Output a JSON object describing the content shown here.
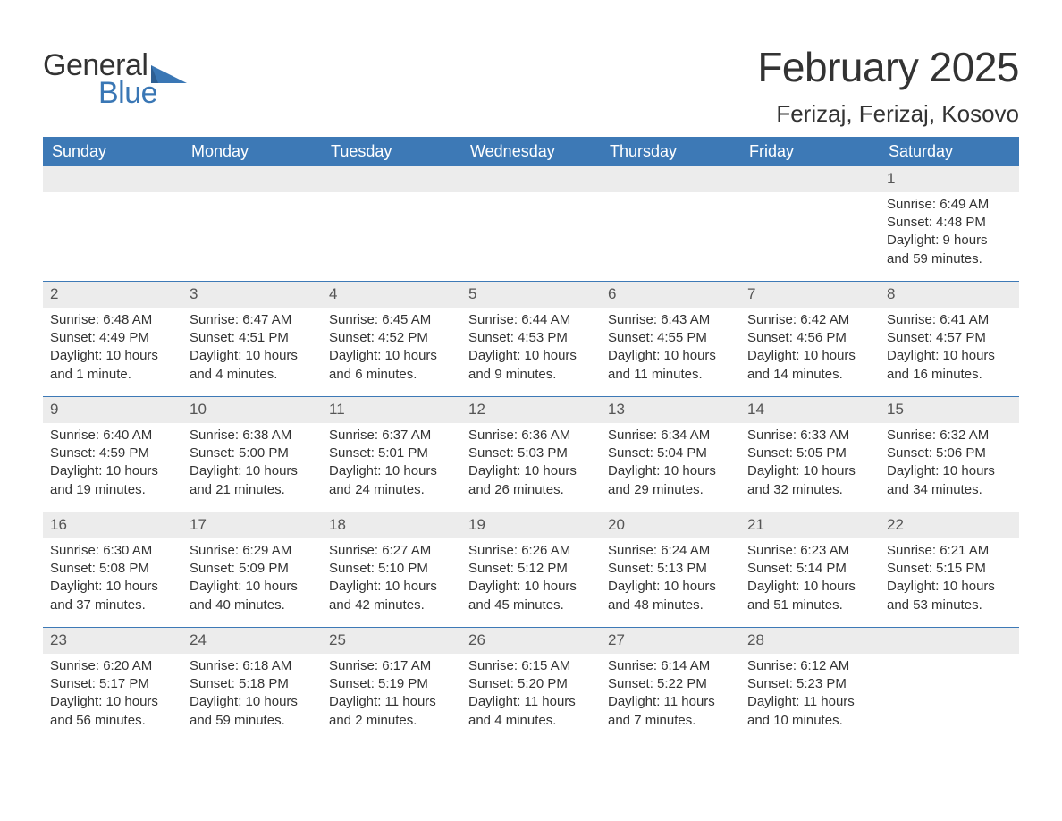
{
  "brand": {
    "text_general": "General",
    "text_blue": "Blue",
    "color_dark": "#333333",
    "color_accent": "#3a77b5"
  },
  "header": {
    "month_title": "February 2025",
    "location": "Ferizaj, Ferizaj, Kosovo"
  },
  "colors": {
    "header_bg": "#3d79b6",
    "header_text": "#ffffff",
    "daynum_bg": "#ececec",
    "daynum_text": "#555555",
    "body_text": "#333333",
    "row_border": "#3d79b6",
    "page_bg": "#ffffff"
  },
  "typography": {
    "month_title_fontsize": 46,
    "location_fontsize": 26,
    "dow_fontsize": 18,
    "daynum_fontsize": 17,
    "body_fontsize": 15,
    "font_family": "Arial"
  },
  "layout": {
    "columns": 7,
    "cell_min_height": 128
  },
  "days_of_week": [
    "Sunday",
    "Monday",
    "Tuesday",
    "Wednesday",
    "Thursday",
    "Friday",
    "Saturday"
  ],
  "weeks": [
    [
      {
        "num": "",
        "sunrise": "",
        "sunset": "",
        "daylight": ""
      },
      {
        "num": "",
        "sunrise": "",
        "sunset": "",
        "daylight": ""
      },
      {
        "num": "",
        "sunrise": "",
        "sunset": "",
        "daylight": ""
      },
      {
        "num": "",
        "sunrise": "",
        "sunset": "",
        "daylight": ""
      },
      {
        "num": "",
        "sunrise": "",
        "sunset": "",
        "daylight": ""
      },
      {
        "num": "",
        "sunrise": "",
        "sunset": "",
        "daylight": ""
      },
      {
        "num": "1",
        "sunrise": "Sunrise: 6:49 AM",
        "sunset": "Sunset: 4:48 PM",
        "daylight": "Daylight: 9 hours and 59 minutes."
      }
    ],
    [
      {
        "num": "2",
        "sunrise": "Sunrise: 6:48 AM",
        "sunset": "Sunset: 4:49 PM",
        "daylight": "Daylight: 10 hours and 1 minute."
      },
      {
        "num": "3",
        "sunrise": "Sunrise: 6:47 AM",
        "sunset": "Sunset: 4:51 PM",
        "daylight": "Daylight: 10 hours and 4 minutes."
      },
      {
        "num": "4",
        "sunrise": "Sunrise: 6:45 AM",
        "sunset": "Sunset: 4:52 PM",
        "daylight": "Daylight: 10 hours and 6 minutes."
      },
      {
        "num": "5",
        "sunrise": "Sunrise: 6:44 AM",
        "sunset": "Sunset: 4:53 PM",
        "daylight": "Daylight: 10 hours and 9 minutes."
      },
      {
        "num": "6",
        "sunrise": "Sunrise: 6:43 AM",
        "sunset": "Sunset: 4:55 PM",
        "daylight": "Daylight: 10 hours and 11 minutes."
      },
      {
        "num": "7",
        "sunrise": "Sunrise: 6:42 AM",
        "sunset": "Sunset: 4:56 PM",
        "daylight": "Daylight: 10 hours and 14 minutes."
      },
      {
        "num": "8",
        "sunrise": "Sunrise: 6:41 AM",
        "sunset": "Sunset: 4:57 PM",
        "daylight": "Daylight: 10 hours and 16 minutes."
      }
    ],
    [
      {
        "num": "9",
        "sunrise": "Sunrise: 6:40 AM",
        "sunset": "Sunset: 4:59 PM",
        "daylight": "Daylight: 10 hours and 19 minutes."
      },
      {
        "num": "10",
        "sunrise": "Sunrise: 6:38 AM",
        "sunset": "Sunset: 5:00 PM",
        "daylight": "Daylight: 10 hours and 21 minutes."
      },
      {
        "num": "11",
        "sunrise": "Sunrise: 6:37 AM",
        "sunset": "Sunset: 5:01 PM",
        "daylight": "Daylight: 10 hours and 24 minutes."
      },
      {
        "num": "12",
        "sunrise": "Sunrise: 6:36 AM",
        "sunset": "Sunset: 5:03 PM",
        "daylight": "Daylight: 10 hours and 26 minutes."
      },
      {
        "num": "13",
        "sunrise": "Sunrise: 6:34 AM",
        "sunset": "Sunset: 5:04 PM",
        "daylight": "Daylight: 10 hours and 29 minutes."
      },
      {
        "num": "14",
        "sunrise": "Sunrise: 6:33 AM",
        "sunset": "Sunset: 5:05 PM",
        "daylight": "Daylight: 10 hours and 32 minutes."
      },
      {
        "num": "15",
        "sunrise": "Sunrise: 6:32 AM",
        "sunset": "Sunset: 5:06 PM",
        "daylight": "Daylight: 10 hours and 34 minutes."
      }
    ],
    [
      {
        "num": "16",
        "sunrise": "Sunrise: 6:30 AM",
        "sunset": "Sunset: 5:08 PM",
        "daylight": "Daylight: 10 hours and 37 minutes."
      },
      {
        "num": "17",
        "sunrise": "Sunrise: 6:29 AM",
        "sunset": "Sunset: 5:09 PM",
        "daylight": "Daylight: 10 hours and 40 minutes."
      },
      {
        "num": "18",
        "sunrise": "Sunrise: 6:27 AM",
        "sunset": "Sunset: 5:10 PM",
        "daylight": "Daylight: 10 hours and 42 minutes."
      },
      {
        "num": "19",
        "sunrise": "Sunrise: 6:26 AM",
        "sunset": "Sunset: 5:12 PM",
        "daylight": "Daylight: 10 hours and 45 minutes."
      },
      {
        "num": "20",
        "sunrise": "Sunrise: 6:24 AM",
        "sunset": "Sunset: 5:13 PM",
        "daylight": "Daylight: 10 hours and 48 minutes."
      },
      {
        "num": "21",
        "sunrise": "Sunrise: 6:23 AM",
        "sunset": "Sunset: 5:14 PM",
        "daylight": "Daylight: 10 hours and 51 minutes."
      },
      {
        "num": "22",
        "sunrise": "Sunrise: 6:21 AM",
        "sunset": "Sunset: 5:15 PM",
        "daylight": "Daylight: 10 hours and 53 minutes."
      }
    ],
    [
      {
        "num": "23",
        "sunrise": "Sunrise: 6:20 AM",
        "sunset": "Sunset: 5:17 PM",
        "daylight": "Daylight: 10 hours and 56 minutes."
      },
      {
        "num": "24",
        "sunrise": "Sunrise: 6:18 AM",
        "sunset": "Sunset: 5:18 PM",
        "daylight": "Daylight: 10 hours and 59 minutes."
      },
      {
        "num": "25",
        "sunrise": "Sunrise: 6:17 AM",
        "sunset": "Sunset: 5:19 PM",
        "daylight": "Daylight: 11 hours and 2 minutes."
      },
      {
        "num": "26",
        "sunrise": "Sunrise: 6:15 AM",
        "sunset": "Sunset: 5:20 PM",
        "daylight": "Daylight: 11 hours and 4 minutes."
      },
      {
        "num": "27",
        "sunrise": "Sunrise: 6:14 AM",
        "sunset": "Sunset: 5:22 PM",
        "daylight": "Daylight: 11 hours and 7 minutes."
      },
      {
        "num": "28",
        "sunrise": "Sunrise: 6:12 AM",
        "sunset": "Sunset: 5:23 PM",
        "daylight": "Daylight: 11 hours and 10 minutes."
      },
      {
        "num": "",
        "sunrise": "",
        "sunset": "",
        "daylight": ""
      }
    ]
  ]
}
